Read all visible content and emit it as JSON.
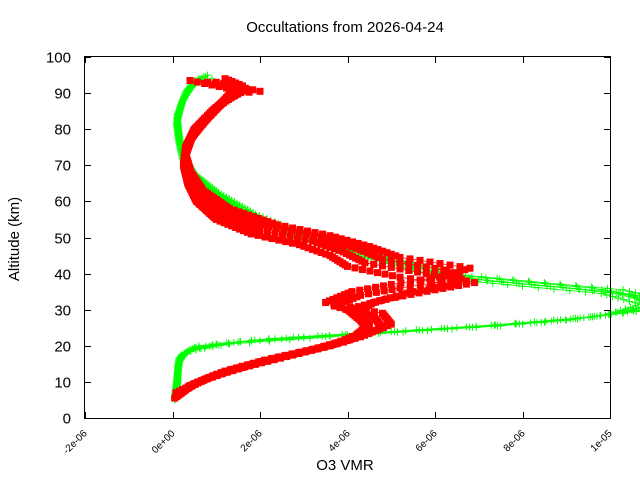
{
  "chart_data": {
    "type": "scatter",
    "title": "Occultations from 2026-04-24",
    "xlabel": "O3 VMR",
    "ylabel": "Altitude (km)",
    "xlim": [
      -2e-06,
      1e-05
    ],
    "ylim": [
      0,
      100
    ],
    "x_ticks": [
      -2e-06,
      0,
      2e-06,
      4e-06,
      6e-06,
      8e-06,
      1e-05
    ],
    "x_tick_labels": [
      "-2e-06",
      "0e+00",
      "2e-06",
      "4e-06",
      "6e-06",
      "8e-06",
      "1e-05"
    ],
    "y_ticks": [
      0,
      10,
      20,
      30,
      40,
      50,
      60,
      70,
      80,
      90,
      100
    ],
    "y_tick_labels": [
      "0",
      "10",
      "20",
      "30",
      "40",
      "50",
      "60",
      "70",
      "80",
      "90",
      "100"
    ],
    "grid": false,
    "legend": "none",
    "series": [
      {
        "color": "#00ff00",
        "marker": "plus",
        "profiles": [
          [
            [
              5e-08,
              5
            ],
            [
              1e-07,
              8
            ],
            [
              1.2e-07,
              12
            ],
            [
              1.5e-07,
              16
            ],
            [
              4e-07,
              19
            ],
            [
              1.5e-06,
              21
            ],
            [
              4e-06,
              23
            ],
            [
              8e-06,
              26
            ],
            [
              1.03e-05,
              29
            ],
            [
              1.1e-05,
              32
            ],
            [
              1e-05,
              35
            ],
            [
              8.2e-06,
              37
            ],
            [
              6.5e-06,
              39
            ],
            [
              4.5e-06,
              45
            ],
            [
              3e-06,
              50
            ],
            [
              1.8e-06,
              56
            ],
            [
              1e-06,
              62
            ],
            [
              5e-07,
              67
            ],
            [
              2.5e-07,
              72
            ],
            [
              1.5e-07,
              77
            ],
            [
              1e-07,
              82
            ],
            [
              2e-07,
              87
            ],
            [
              3.5e-07,
              91
            ],
            [
              6e-07,
              94
            ]
          ],
          [
            [
              6e-08,
              5
            ],
            [
              1.1e-07,
              9
            ],
            [
              1.3e-07,
              13
            ],
            [
              1.7e-07,
              17
            ],
            [
              5e-07,
              19.5
            ],
            [
              1.8e-06,
              21.5
            ],
            [
              4.5e-06,
              23.5
            ],
            [
              8.5e-06,
              26.5
            ],
            [
              1.06e-05,
              29.5
            ],
            [
              1.13e-05,
              32.5
            ],
            [
              1.03e-05,
              35.5
            ],
            [
              8.5e-06,
              37.5
            ],
            [
              6.7e-06,
              39.5
            ],
            [
              4.6e-06,
              45.5
            ],
            [
              3.1e-06,
              50.5
            ],
            [
              1.9e-06,
              56.5
            ],
            [
              1.05e-06,
              62.5
            ],
            [
              5.2e-07,
              67.5
            ],
            [
              2.7e-07,
              72.5
            ],
            [
              1.6e-07,
              77.5
            ],
            [
              1.2e-07,
              82.5
            ],
            [
              2.2e-07,
              87.5
            ],
            [
              4e-07,
              91.5
            ],
            [
              7e-07,
              94.5
            ]
          ],
          [
            [
              4e-08,
              5.5
            ],
            [
              9e-08,
              8.5
            ],
            [
              1.1e-07,
              12.5
            ],
            [
              1.4e-07,
              16.5
            ],
            [
              3.5e-07,
              18.5
            ],
            [
              1.3e-06,
              20.5
            ],
            [
              3.6e-06,
              22.5
            ],
            [
              7.5e-06,
              25.5
            ],
            [
              9.9e-06,
              28.5
            ],
            [
              1.07e-05,
              31.5
            ],
            [
              9.8e-06,
              34.5
            ],
            [
              8e-06,
              36.5
            ],
            [
              6.3e-06,
              38.5
            ],
            [
              4.4e-06,
              44.5
            ],
            [
              2.9e-06,
              49.5
            ],
            [
              1.7e-06,
              55.5
            ],
            [
              9.5e-07,
              61.5
            ],
            [
              4.8e-07,
              66.5
            ],
            [
              2.3e-07,
              71.5
            ],
            [
              1.4e-07,
              76.5
            ],
            [
              9e-08,
              81.5
            ],
            [
              1.8e-07,
              86.5
            ],
            [
              3e-07,
              90.5
            ],
            [
              5e-07,
              93.5
            ]
          ],
          [
            [
              7e-08,
              6
            ],
            [
              1.2e-07,
              10
            ],
            [
              1.4e-07,
              14
            ],
            [
              2e-07,
              17.5
            ],
            [
              6e-07,
              20
            ],
            [
              2.2e-06,
              22
            ],
            [
              5e-06,
              24
            ],
            [
              9e-06,
              27
            ],
            [
              1.08e-05,
              30
            ],
            [
              1.11e-05,
              33
            ],
            [
              9.6e-06,
              36
            ],
            [
              7.8e-06,
              38
            ],
            [
              6.2e-06,
              40
            ],
            [
              4.3e-06,
              46
            ],
            [
              2.8e-06,
              51
            ],
            [
              1.6e-06,
              57
            ],
            [
              9e-07,
              63
            ],
            [
              4.5e-07,
              68
            ],
            [
              2.4e-07,
              73
            ],
            [
              1.5e-07,
              78
            ],
            [
              1.1e-07,
              83
            ],
            [
              2.5e-07,
              88
            ],
            [
              4.5e-07,
              92
            ],
            [
              8e-07,
              95
            ]
          ],
          [
            [
              5e-08,
              6.5
            ],
            [
              1e-07,
              11
            ],
            [
              1.3e-07,
              15
            ],
            [
              3e-07,
              18
            ],
            [
              1e-06,
              20.5
            ],
            [
              3e-06,
              22.5
            ],
            [
              6.5e-06,
              25
            ],
            [
              9.6e-06,
              28
            ],
            [
              1.09e-05,
              31
            ],
            [
              1.05e-05,
              34
            ],
            [
              9e-06,
              36
            ],
            [
              7.2e-06,
              38
            ],
            [
              5.8e-06,
              41
            ],
            [
              4e-06,
              47
            ],
            [
              2.6e-06,
              52
            ],
            [
              1.5e-06,
              58
            ],
            [
              8e-07,
              64
            ],
            [
              4e-07,
              69
            ],
            [
              2e-07,
              74
            ],
            [
              1.3e-07,
              79
            ],
            [
              1e-07,
              84
            ],
            [
              2.8e-07,
              89
            ],
            [
              5e-07,
              92.5
            ],
            [
              9e-07,
              94
            ]
          ]
        ]
      },
      {
        "color": "#ff0000",
        "marker": "square",
        "profiles": [
          [
            [
              5e-08,
              5.5
            ],
            [
              3e-07,
              8
            ],
            [
              8e-07,
              11
            ],
            [
              1.6e-06,
              14
            ],
            [
              2.6e-06,
              17
            ],
            [
              3.6e-06,
              20
            ],
            [
              4.2e-06,
              23
            ],
            [
              4.5e-06,
              26
            ],
            [
              4.2e-06,
              29
            ],
            [
              4.6e-06,
              32
            ],
            [
              5.5e-06,
              35
            ],
            [
              6.4e-06,
              37
            ],
            [
              5.2e-06,
              39
            ],
            [
              4e-06,
              42
            ],
            [
              3.6e-06,
              45
            ],
            [
              2.9e-06,
              48
            ],
            [
              1.8e-06,
              51
            ],
            [
              1e-06,
              55
            ],
            [
              5.5e-07,
              60
            ],
            [
              3.5e-07,
              65
            ],
            [
              2.5e-07,
              70
            ],
            [
              3e-07,
              75
            ],
            [
              5e-07,
              80
            ],
            [
              9e-07,
              85
            ],
            [
              1.3e-06,
              89
            ],
            [
              1.6e-06,
              92
            ],
            [
              1.2e-06,
              94
            ]
          ],
          [
            [
              1e-07,
              6
            ],
            [
              4e-07,
              9
            ],
            [
              1e-06,
              12
            ],
            [
              1.9e-06,
              15
            ],
            [
              2.9e-06,
              18
            ],
            [
              3.9e-06,
              21
            ],
            [
              4.5e-06,
              24
            ],
            [
              4.3e-06,
              27
            ],
            [
              4e-06,
              30
            ],
            [
              4.9e-06,
              33
            ],
            [
              6e-06,
              35.5
            ],
            [
              6.9e-06,
              37.5
            ],
            [
              5.8e-06,
              40
            ],
            [
              4.4e-06,
              43
            ],
            [
              3.9e-06,
              46
            ],
            [
              3.2e-06,
              49
            ],
            [
              2e-06,
              52
            ],
            [
              1.1e-06,
              56
            ],
            [
              6e-07,
              61
            ],
            [
              3.8e-07,
              66
            ],
            [
              2.7e-07,
              71
            ],
            [
              3.5e-07,
              76
            ],
            [
              6e-07,
              81
            ],
            [
              1e-06,
              86
            ],
            [
              1.5e-06,
              90
            ],
            [
              2e-06,
              90.5
            ],
            [
              1e-06,
              93
            ]
          ],
          [
            [
              1.5e-07,
              6.5
            ],
            [
              5e-07,
              9.5
            ],
            [
              1.2e-06,
              13
            ],
            [
              2.1e-06,
              16
            ],
            [
              3.2e-06,
              19
            ],
            [
              4.1e-06,
              22
            ],
            [
              4.8e-06,
              25
            ],
            [
              4.6e-06,
              28
            ],
            [
              3.7e-06,
              31
            ],
            [
              4.3e-06,
              34
            ],
            [
              5.2e-06,
              36
            ],
            [
              6.6e-06,
              38.5
            ],
            [
              6.2e-06,
              41
            ],
            [
              4.8e-06,
              44
            ],
            [
              4.2e-06,
              47
            ],
            [
              3.4e-06,
              50
            ],
            [
              2.2e-06,
              53
            ],
            [
              1.2e-06,
              57
            ],
            [
              6.5e-07,
              62
            ],
            [
              4e-07,
              67
            ],
            [
              2.8e-07,
              72
            ],
            [
              4e-07,
              77
            ],
            [
              7e-07,
              82
            ],
            [
              1.1e-06,
              87
            ],
            [
              1.4e-06,
              91
            ],
            [
              4e-07,
              93.5
            ]
          ],
          [
            [
              8e-08,
              7
            ],
            [
              6e-07,
              10
            ],
            [
              1.4e-06,
              13.5
            ],
            [
              2.3e-06,
              16.5
            ],
            [
              3.4e-06,
              19.5
            ],
            [
              4.3e-06,
              22.5
            ],
            [
              5e-06,
              26
            ],
            [
              4.8e-06,
              29
            ],
            [
              3.5e-06,
              32
            ],
            [
              4.1e-06,
              35
            ],
            [
              5e-06,
              37
            ],
            [
              6.1e-06,
              39
            ],
            [
              6.8e-06,
              41.5
            ],
            [
              5.2e-06,
              44.5
            ],
            [
              4.5e-06,
              47.5
            ],
            [
              3.6e-06,
              50.5
            ],
            [
              2.4e-06,
              53.5
            ],
            [
              1.3e-06,
              58
            ],
            [
              7e-07,
              63
            ],
            [
              4.2e-07,
              68
            ],
            [
              3e-07,
              73
            ],
            [
              4.5e-07,
              78
            ],
            [
              8e-07,
              83
            ],
            [
              1.2e-06,
              88
            ],
            [
              1.7e-06,
              91
            ],
            [
              8e-07,
              93
            ]
          ]
        ]
      }
    ]
  }
}
